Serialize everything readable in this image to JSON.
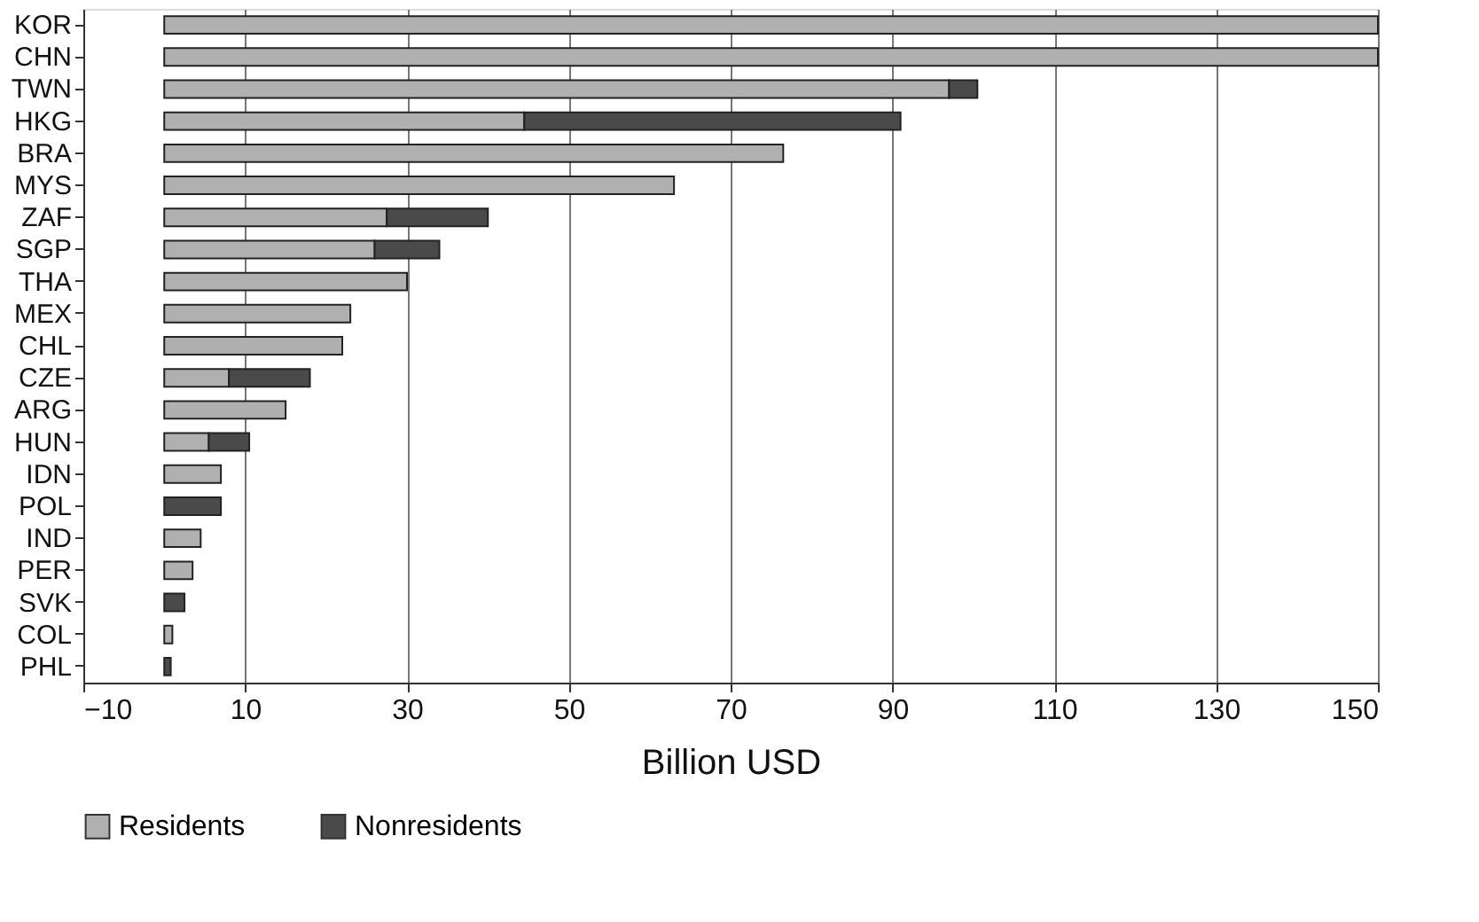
{
  "chart_data": {
    "type": "bar",
    "orientation": "horizontal",
    "stacked": true,
    "xlabel": "Billion USD",
    "categories": [
      "KOR",
      "CHN",
      "TWN",
      "HKG",
      "BRA",
      "MYS",
      "ZAF",
      "SGP",
      "THA",
      "MEX",
      "CHL",
      "CZE",
      "ARG",
      "HUN",
      "IDN",
      "POL",
      "IND",
      "PER",
      "SVK",
      "COL",
      "PHL"
    ],
    "series": [
      {
        "name": "Residents",
        "color": "#b0b0b0",
        "values": [
          150,
          150,
          97,
          44.5,
          76.5,
          63,
          27.5,
          26,
          30,
          23,
          22,
          8,
          15,
          5.5,
          7,
          null,
          4.5,
          3.5,
          null,
          1,
          null
        ]
      },
      {
        "name": "Nonresidents",
        "color": "#4a4a4a",
        "values": [
          null,
          null,
          3.5,
          46.5,
          null,
          null,
          12.5,
          8,
          null,
          null,
          null,
          10,
          null,
          5,
          null,
          7,
          null,
          null,
          2.5,
          null,
          0.8
        ]
      }
    ],
    "xlim": [
      -10,
      150
    ],
    "xticks": [
      -10,
      10,
      30,
      50,
      70,
      90,
      110,
      130,
      150
    ],
    "grid": "x",
    "legend": "bottom"
  }
}
